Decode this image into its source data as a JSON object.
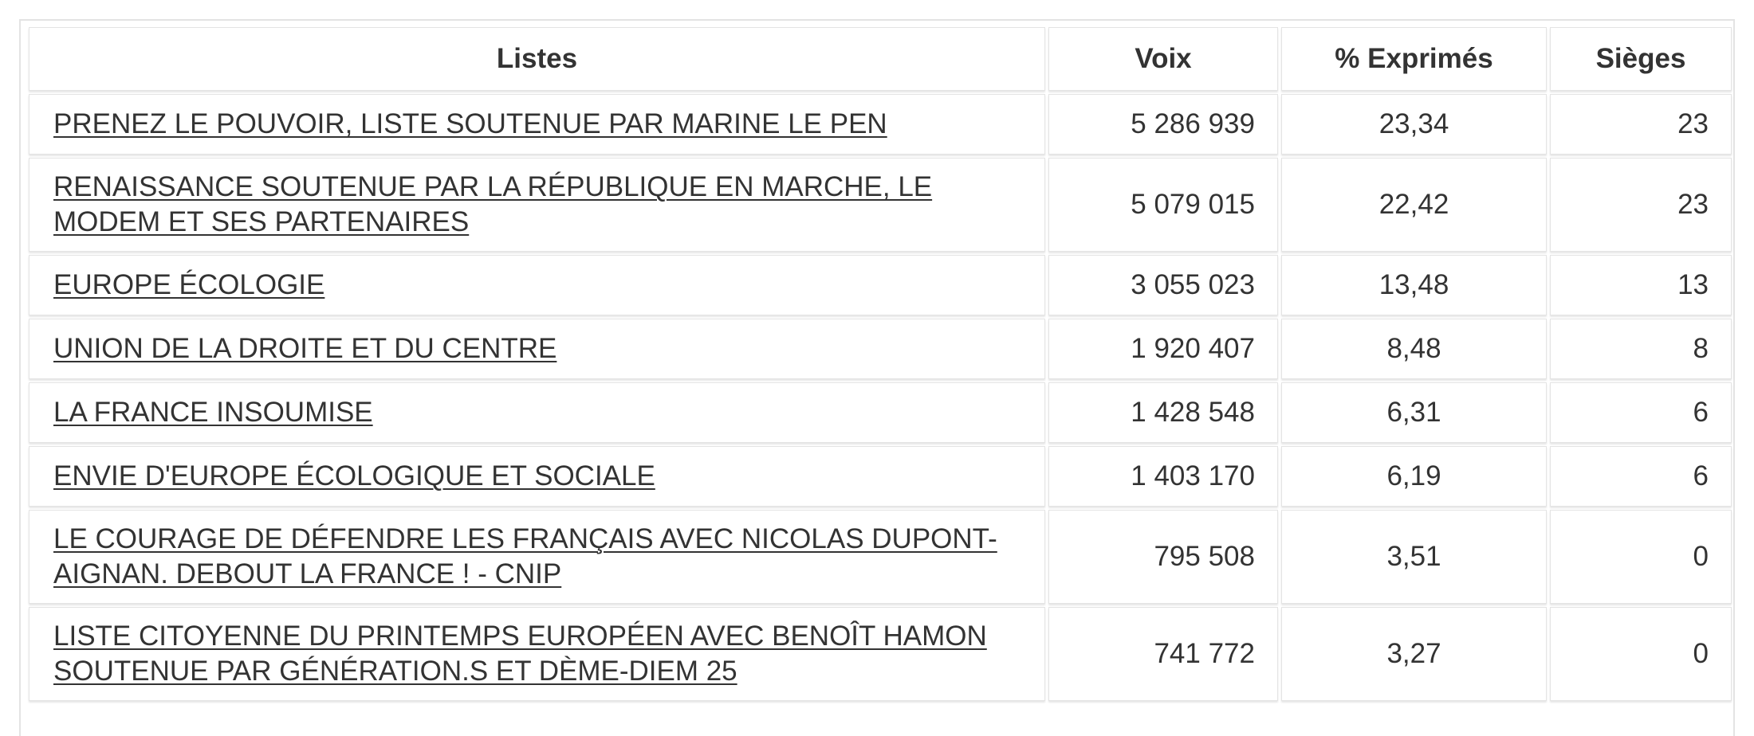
{
  "table": {
    "headers": {
      "listes": "Listes",
      "voix": "Voix",
      "exprimes": "% Exprimés",
      "sieges": "Sièges"
    },
    "rows": [
      {
        "liste": "PRENEZ LE POUVOIR, LISTE SOUTENUE PAR MARINE LE PEN",
        "voix": "5 286 939",
        "exprimes": "23,34",
        "sieges": "23"
      },
      {
        "liste": "RENAISSANCE SOUTENUE PAR LA RÉPUBLIQUE EN MARCHE, LE MODEM ET SES PARTENAIRES",
        "voix": "5 079 015",
        "exprimes": "22,42",
        "sieges": "23"
      },
      {
        "liste": "EUROPE ÉCOLOGIE",
        "voix": "3 055 023",
        "exprimes": "13,48",
        "sieges": "13"
      },
      {
        "liste": "UNION DE LA DROITE ET DU CENTRE",
        "voix": "1 920 407",
        "exprimes": "8,48",
        "sieges": "8"
      },
      {
        "liste": "LA FRANCE INSOUMISE",
        "voix": "1 428 548",
        "exprimes": "6,31",
        "sieges": "6"
      },
      {
        "liste": "ENVIE D'EUROPE ÉCOLOGIQUE ET SOCIALE",
        "voix": "1 403 170",
        "exprimes": "6,19",
        "sieges": "6"
      },
      {
        "liste": "LE COURAGE DE DÉFENDRE LES FRANÇAIS AVEC NICOLAS DUPONT-AIGNAN. DEBOUT LA FRANCE ! - CNIP",
        "voix": "795 508",
        "exprimes": "3,51",
        "sieges": "0"
      },
      {
        "liste": "LISTE CITOYENNE DU PRINTEMPS EUROPÉEN AVEC BENOÎT HAMON SOUTENUE PAR GÉNÉRATION.S ET DÈME-DIEM 25",
        "voix": "741 772",
        "exprimes": "3,27",
        "sieges": "0"
      }
    ]
  }
}
